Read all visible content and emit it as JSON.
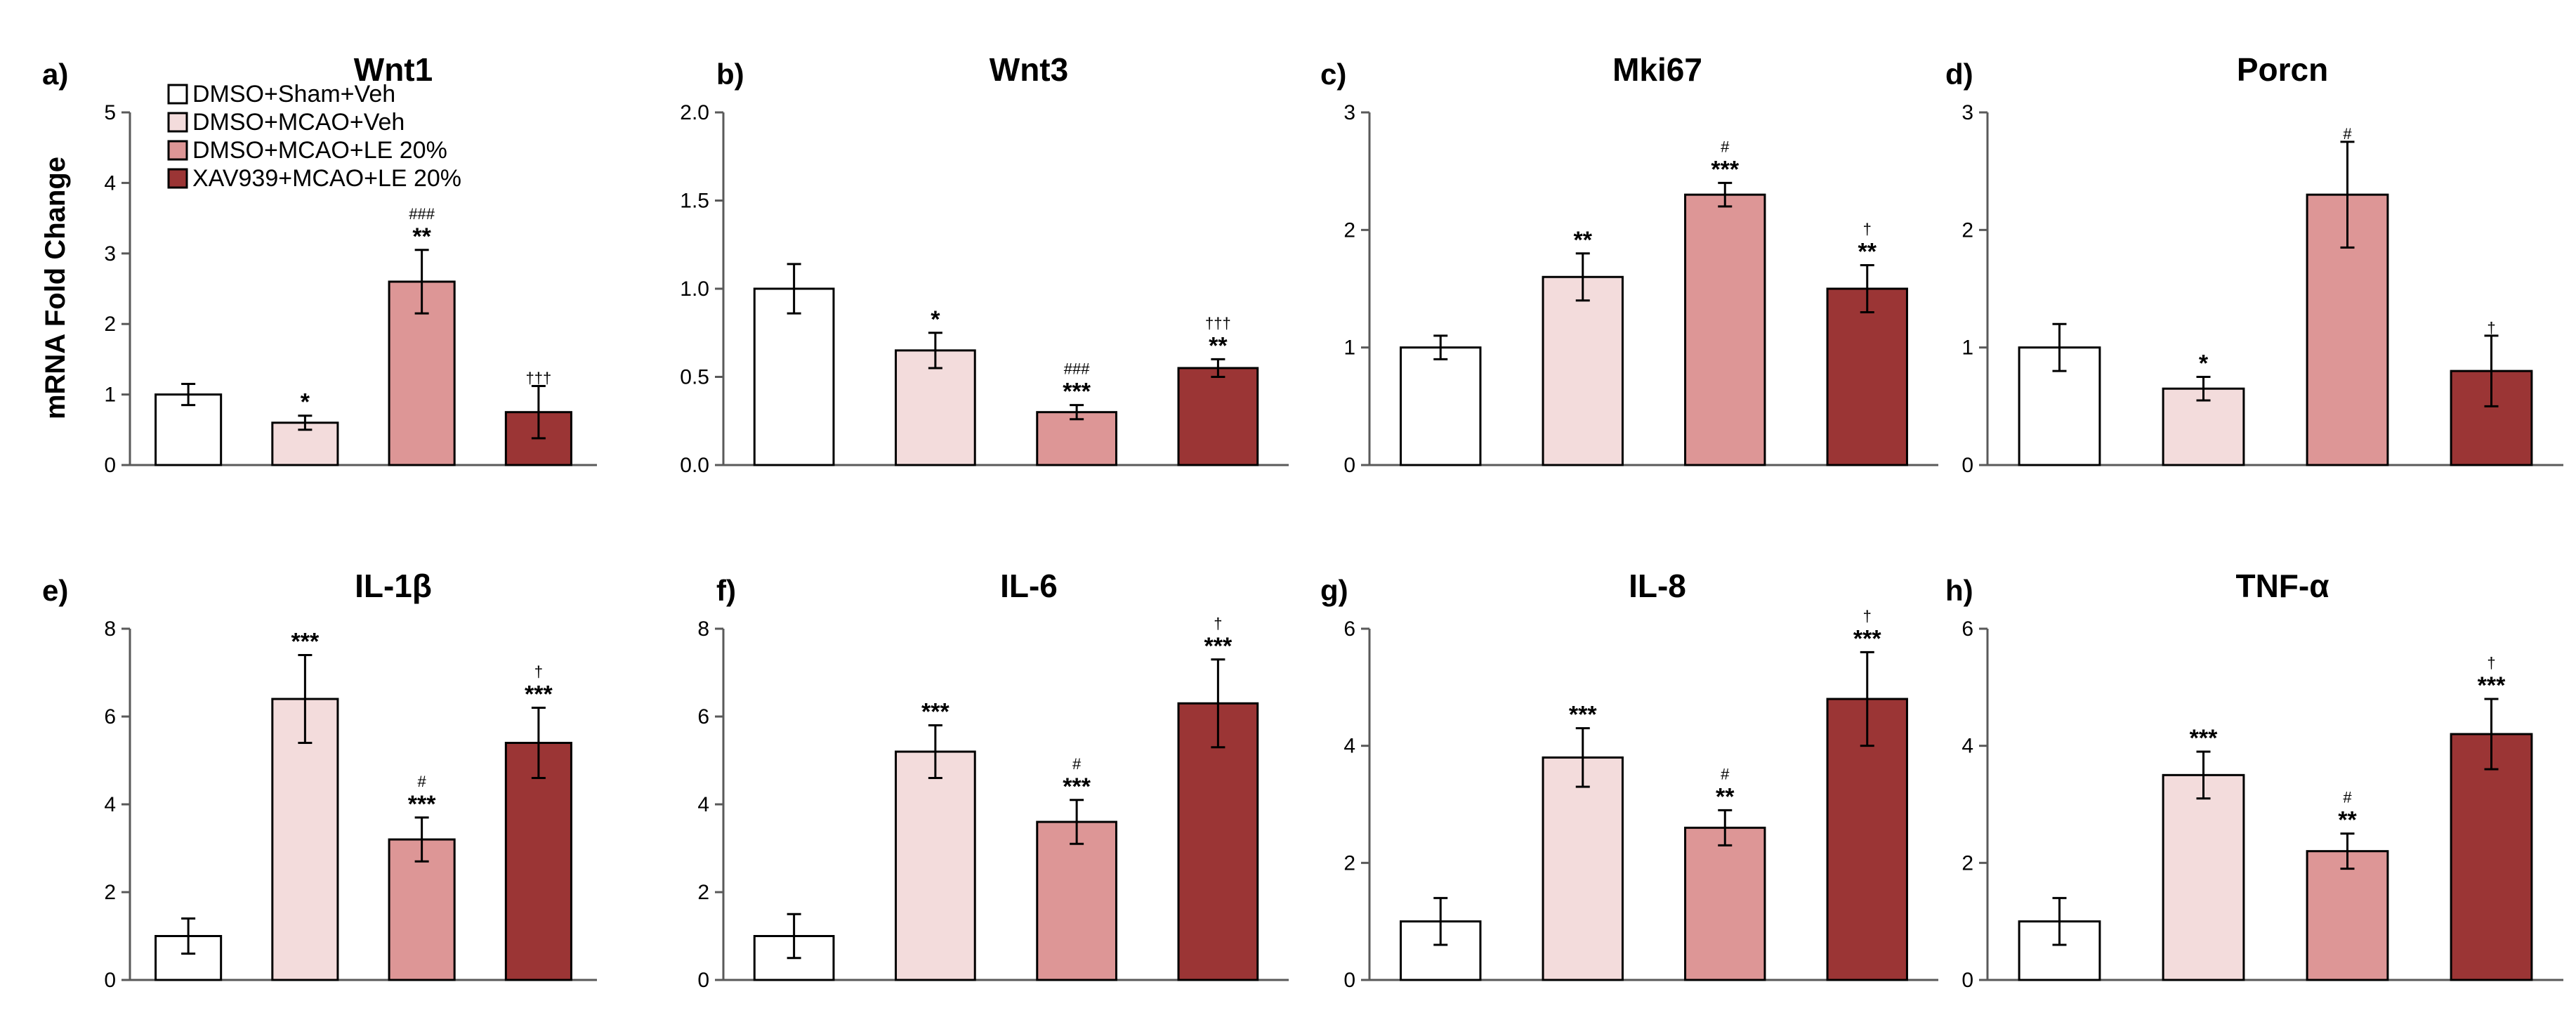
{
  "chart_data": {
    "type": "bar",
    "ylabel": "mRNA Fold Change",
    "legend": [
      {
        "name": "DMSO+Sham+Veh",
        "color": "#ffffff"
      },
      {
        "name": "DMSO+MCAO+Veh",
        "color": "#f3dcdc"
      },
      {
        "name": "DMSO+MCAO+LE 20%",
        "color": "#dd9696"
      },
      {
        "name": "XAV939+MCAO+LE 20%",
        "color": "#9b3535"
      }
    ],
    "legend_position": "top-left of panel a",
    "panels": [
      {
        "label": "a)",
        "title": "Wnt1",
        "ylim": [
          0,
          5
        ],
        "ticks": [
          "0",
          "1",
          "2",
          "3",
          "4",
          "5"
        ],
        "values": [
          1.0,
          0.6,
          2.6,
          0.75
        ],
        "errors": [
          0.15,
          0.1,
          0.45,
          0.37
        ],
        "sig": [
          "",
          "*",
          "**",
          ""
        ],
        "sig_small": [
          "",
          "",
          "###",
          "†††"
        ]
      },
      {
        "label": "b)",
        "title": "Wnt3",
        "ylim": [
          0,
          2
        ],
        "ticks": [
          "0.0",
          "0.5",
          "1.0",
          "1.5",
          "2.0"
        ],
        "values": [
          1.0,
          0.65,
          0.3,
          0.55
        ],
        "errors": [
          0.14,
          0.1,
          0.04,
          0.05
        ],
        "sig": [
          "",
          "*",
          "***",
          "**"
        ],
        "sig_small": [
          "",
          "",
          "###",
          "†††"
        ]
      },
      {
        "label": "c)",
        "title": "Mki67",
        "ylim": [
          0,
          3
        ],
        "ticks": [
          "0",
          "1",
          "2",
          "3"
        ],
        "values": [
          1.0,
          1.6,
          2.3,
          1.5
        ],
        "errors": [
          0.1,
          0.2,
          0.1,
          0.2
        ],
        "sig": [
          "",
          "**",
          "***",
          "**"
        ],
        "sig_small": [
          "",
          "",
          "#",
          "†"
        ]
      },
      {
        "label": "d)",
        "title": "Porcn",
        "ylim": [
          0,
          3
        ],
        "ticks": [
          "0",
          "1",
          "2",
          "3"
        ],
        "values": [
          1.0,
          0.65,
          2.3,
          0.8
        ],
        "errors": [
          0.2,
          0.1,
          0.45,
          0.3
        ],
        "sig": [
          "",
          "*",
          "",
          ""
        ],
        "sig_small": [
          "",
          "",
          "#",
          "†"
        ]
      },
      {
        "label": "e)",
        "title": "IL-1β",
        "ylim": [
          0,
          8
        ],
        "ticks": [
          "0",
          "2",
          "4",
          "6",
          "8"
        ],
        "values": [
          1.0,
          6.4,
          3.2,
          5.4
        ],
        "errors": [
          0.4,
          1.0,
          0.5,
          0.8
        ],
        "sig": [
          "",
          "***",
          "***",
          "***"
        ],
        "sig_small": [
          "",
          "",
          "#",
          "†"
        ]
      },
      {
        "label": "f)",
        "title": "IL-6",
        "ylim": [
          0,
          8
        ],
        "ticks": [
          "0",
          "2",
          "4",
          "6",
          "8"
        ],
        "values": [
          1.0,
          5.2,
          3.6,
          6.3
        ],
        "errors": [
          0.5,
          0.6,
          0.5,
          1.0
        ],
        "sig": [
          "",
          "***",
          "***",
          "***"
        ],
        "sig_small": [
          "",
          "",
          "#",
          "†"
        ]
      },
      {
        "label": "g)",
        "title": "IL-8",
        "ylim": [
          0,
          6
        ],
        "ticks": [
          "0",
          "2",
          "4",
          "6"
        ],
        "values": [
          1.0,
          3.8,
          2.6,
          4.8
        ],
        "errors": [
          0.4,
          0.5,
          0.3,
          0.8
        ],
        "sig": [
          "",
          "***",
          "**",
          "***"
        ],
        "sig_small": [
          "",
          "",
          "#",
          "†"
        ]
      },
      {
        "label": "h)",
        "title": "TNF-α",
        "ylim": [
          0,
          6
        ],
        "ticks": [
          "0",
          "2",
          "4",
          "6"
        ],
        "values": [
          1.0,
          3.5,
          2.2,
          4.2
        ],
        "errors": [
          0.4,
          0.4,
          0.3,
          0.6
        ],
        "sig": [
          "",
          "***",
          "**",
          "***"
        ],
        "sig_small": [
          "",
          "",
          "#",
          "†"
        ]
      }
    ]
  }
}
